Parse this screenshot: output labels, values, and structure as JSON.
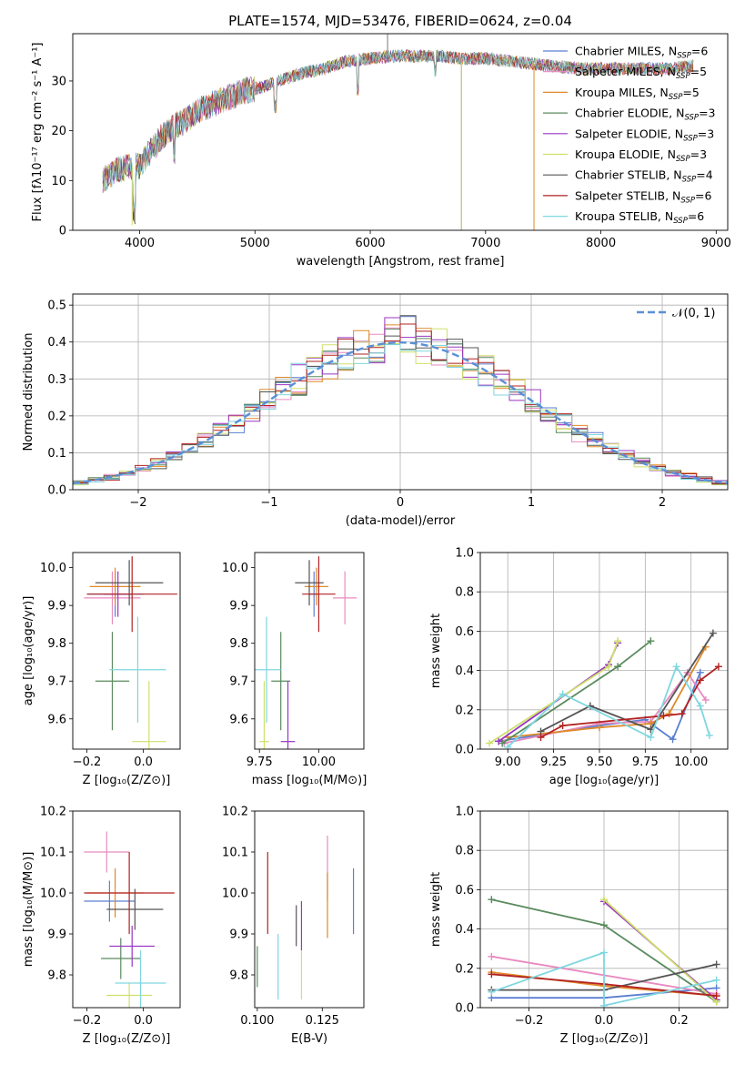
{
  "chart_data": [
    {
      "id": "spectrum",
      "type": "line",
      "title": "PLATE=1574, MJD=53476, FIBERID=0624, z=0.04",
      "xlabel": "wavelength [Angstrom, rest frame]",
      "ylabel": "Flux [fλ10⁻¹⁷ erg cm⁻² s⁻¹ A⁻¹]",
      "xlim": [
        3420,
        9100
      ],
      "ylim": [
        0,
        39.5
      ],
      "x_ticks": [
        4000,
        5000,
        6000,
        7000,
        8000,
        9000
      ],
      "y_ticks": [
        0,
        10,
        20,
        30
      ],
      "legend_position": "right",
      "series": [
        {
          "name": "Chabrier MILES, N_SSP=6",
          "color": "#5b7fd1"
        },
        {
          "name": "Salpeter MILES, N_SSP=5",
          "color": "#e88ac0"
        },
        {
          "name": "Kroupa MILES, N_SSP=5",
          "color": "#e0892a"
        },
        {
          "name": "Chabrier ELODIE, N_SSP=3",
          "color": "#5a8a5e"
        },
        {
          "name": "Salpeter ELODIE, N_SSP=3",
          "color": "#9a36c2"
        },
        {
          "name": "Kroupa ELODIE, N_SSP=3",
          "color": "#cfe06b"
        },
        {
          "name": "Chabrier STELIB, N_SSP=4",
          "color": "#555555"
        },
        {
          "name": "Salpeter STELIB, N_SSP=6",
          "color": "#b22222"
        },
        {
          "name": "Kroupa STELIB, N_SSP=6",
          "color": "#7fd6e0"
        }
      ],
      "envelope": {
        "x": [
          3680,
          3800,
          3950,
          4000,
          4100,
          4200,
          4300,
          4400,
          4500,
          4600,
          4700,
          4800,
          4900,
          5000,
          5100,
          5200,
          5400,
          5600,
          5800,
          6000,
          6200,
          6400,
          6600,
          6800,
          7000,
          7200,
          7400,
          7600,
          7800,
          8000,
          8200,
          8400,
          8600,
          8800
        ],
        "y": [
          10,
          12,
          13,
          13,
          16,
          19,
          21,
          22,
          24,
          25,
          26,
          27,
          28,
          28.5,
          29,
          30,
          31.5,
          32.5,
          34,
          34.5,
          35,
          35,
          35,
          34.5,
          34.5,
          34,
          33.5,
          33,
          32.5,
          32.5,
          32.5,
          32.5,
          32.5,
          33
        ]
      },
      "drops": [
        {
          "x": 3935,
          "y_min": 1,
          "color": "#cfe06b"
        },
        {
          "x": 6790,
          "y_min": 0,
          "color": "#b3b35a"
        },
        {
          "x": 7420,
          "y_min": 0,
          "color": "#e0892a"
        }
      ]
    },
    {
      "id": "residuals",
      "type": "line",
      "xlabel": "(data-model)/error",
      "ylabel": "Normed distribution",
      "xlim": [
        -2.5,
        2.5
      ],
      "ylim": [
        0,
        0.53
      ],
      "x_ticks": [
        -2,
        -1,
        0,
        1,
        2
      ],
      "y_ticks": [
        0.0,
        0.1,
        0.2,
        0.3,
        0.4,
        0.5
      ],
      "grid": true,
      "legend": [
        {
          "name": "𝒩(0, 1)",
          "color": "#5b8fd6"
        }
      ],
      "legend_position": "top-right",
      "gaussian": {
        "mu": 0,
        "sigma": 1
      }
    },
    {
      "id": "age_vs_Z",
      "type": "scatter",
      "xlabel": "Z [log₁₀(Z/Z⊙)]",
      "ylabel": "age  [log₁₀(age/yr)]",
      "xlim": [
        -0.25,
        0.13
      ],
      "ylim": [
        9.52,
        10.04
      ],
      "x_ticks": [
        -0.2,
        0.0
      ],
      "y_ticks": [
        9.6,
        9.7,
        9.8,
        9.9,
        10.0
      ],
      "points": [
        {
          "x": -0.1,
          "y": 9.93,
          "xerr": 0.1,
          "yerr": 0.06,
          "color": "#5b7fd1"
        },
        {
          "x": -0.11,
          "y": 9.92,
          "xerr": 0.1,
          "yerr": 0.07,
          "color": "#e88ac0"
        },
        {
          "x": -0.1,
          "y": 9.95,
          "xerr": 0.09,
          "yerr": 0.05,
          "color": "#e0892a"
        },
        {
          "x": -0.11,
          "y": 9.7,
          "xerr": 0.06,
          "yerr": 0.13,
          "color": "#5a8a5e"
        },
        {
          "x": -0.09,
          "y": 9.93,
          "xerr": 0.05,
          "yerr": 0.06,
          "color": "#9a36c2"
        },
        {
          "x": 0.02,
          "y": 9.54,
          "xerr": 0.06,
          "yerr": 0.16,
          "color": "#cfe06b"
        },
        {
          "x": -0.05,
          "y": 9.96,
          "xerr": 0.12,
          "yerr": 0.06,
          "color": "#555555"
        },
        {
          "x": -0.04,
          "y": 9.93,
          "xerr": 0.16,
          "yerr": 0.1,
          "color": "#b22222"
        },
        {
          "x": -0.02,
          "y": 9.73,
          "xerr": 0.1,
          "yerr": 0.14,
          "color": "#7fd6e0"
        }
      ]
    },
    {
      "id": "age_vs_mass",
      "type": "scatter",
      "xlabel": "mass [log₁₀(M/M⊙)]",
      "xlim": [
        9.73,
        10.19
      ],
      "ylim": [
        9.52,
        10.04
      ],
      "x_ticks": [
        9.75,
        10.0
      ],
      "y_ticks": [
        9.6,
        9.7,
        9.8,
        9.9,
        10.0
      ],
      "points": [
        {
          "x": 9.98,
          "y": 9.93,
          "xerr": 0.02,
          "yerr": 0.06,
          "color": "#5b7fd1"
        },
        {
          "x": 10.11,
          "y": 9.92,
          "xerr": 0.05,
          "yerr": 0.07,
          "color": "#e88ac0"
        },
        {
          "x": 9.99,
          "y": 9.95,
          "xerr": 0.05,
          "yerr": 0.05,
          "color": "#e0892a"
        },
        {
          "x": 9.84,
          "y": 9.7,
          "xerr": 0.04,
          "yerr": 0.13,
          "color": "#5a8a5e"
        },
        {
          "x": 9.87,
          "y": 9.54,
          "xerr": 0.03,
          "yerr": 0.16,
          "color": "#9a36c2"
        },
        {
          "x": 9.77,
          "y": 9.54,
          "xerr": 0.02,
          "yerr": 0.16,
          "color": "#cfe06b"
        },
        {
          "x": 9.96,
          "y": 9.96,
          "xerr": 0.06,
          "yerr": 0.06,
          "color": "#555555"
        },
        {
          "x": 10.0,
          "y": 9.93,
          "xerr": 0.07,
          "yerr": 0.1,
          "color": "#b22222"
        },
        {
          "x": 9.78,
          "y": 9.73,
          "xerr": 0.06,
          "yerr": 0.14,
          "color": "#7fd6e0"
        }
      ]
    },
    {
      "id": "weight_vs_age",
      "type": "line",
      "xlabel": "age  [log₁₀(age/yr)]",
      "ylabel": "mass weight",
      "xlim": [
        8.85,
        10.2
      ],
      "ylim": [
        0,
        1.0
      ],
      "x_ticks": [
        9.0,
        9.25,
        9.5,
        9.75,
        10.0
      ],
      "y_ticks": [
        0.0,
        0.2,
        0.4,
        0.6,
        0.8,
        1.0
      ],
      "grid": true,
      "series": [
        {
          "color": "#5b7fd1",
          "x": [
            8.95,
            9.5,
            9.75,
            9.9,
            10.05
          ],
          "y": [
            0.04,
            0.12,
            0.15,
            0.05,
            0.39
          ]
        },
        {
          "color": "#e88ac0",
          "x": [
            8.98,
            9.5,
            9.78,
            9.98,
            10.08
          ],
          "y": [
            0.03,
            0.13,
            0.14,
            0.39,
            0.25
          ]
        },
        {
          "color": "#e0892a",
          "x": [
            9.0,
            9.5,
            9.78,
            9.88,
            10.08
          ],
          "y": [
            0.06,
            0.11,
            0.13,
            0.18,
            0.52
          ]
        },
        {
          "color": "#5a8a5e",
          "x": [
            8.97,
            9.6,
            9.78
          ],
          "y": [
            0.03,
            0.42,
            0.55
          ]
        },
        {
          "color": "#9a36c2",
          "x": [
            8.95,
            9.55,
            9.6
          ],
          "y": [
            0.04,
            0.43,
            0.54
          ]
        },
        {
          "color": "#cfe06b",
          "x": [
            8.9,
            9.55,
            9.6
          ],
          "y": [
            0.03,
            0.42,
            0.55
          ]
        },
        {
          "color": "#555555",
          "x": [
            9.18,
            9.45,
            9.78,
            10.12
          ],
          "y": [
            0.09,
            0.22,
            0.1,
            0.59
          ]
        },
        {
          "color": "#b22222",
          "x": [
            9.18,
            9.3,
            9.85,
            9.95,
            10.05,
            10.15
          ],
          "y": [
            0.06,
            0.12,
            0.17,
            0.18,
            0.35,
            0.42
          ]
        },
        {
          "color": "#7fd6e0",
          "x": [
            9.0,
            9.3,
            9.78,
            9.92,
            10.05,
            10.1
          ],
          "y": [
            0.01,
            0.28,
            0.06,
            0.42,
            0.22,
            0.07
          ]
        }
      ]
    },
    {
      "id": "mass_vs_Z",
      "type": "scatter",
      "xlabel": "Z [log₁₀(Z/Z⊙)]",
      "ylabel": "mass [log₁₀(M/M⊙)]",
      "xlim": [
        -0.25,
        0.13
      ],
      "ylim": [
        9.72,
        10.2
      ],
      "x_ticks": [
        -0.2,
        0.0
      ],
      "y_ticks": [
        9.8,
        9.9,
        10.0,
        10.1,
        10.2
      ],
      "points": [
        {
          "x": -0.12,
          "y": 9.98,
          "xerr": 0.09,
          "yerr": 0.05,
          "color": "#5b7fd1"
        },
        {
          "x": -0.13,
          "y": 10.1,
          "xerr": 0.08,
          "yerr": 0.05,
          "color": "#e88ac0"
        },
        {
          "x": -0.1,
          "y": 10.0,
          "xerr": 0.1,
          "yerr": 0.06,
          "color": "#e0892a"
        },
        {
          "x": -0.08,
          "y": 9.84,
          "xerr": 0.07,
          "yerr": 0.05,
          "color": "#5a8a5e"
        },
        {
          "x": -0.04,
          "y": 9.87,
          "xerr": 0.08,
          "yerr": 0.05,
          "color": "#9a36c2"
        },
        {
          "x": -0.05,
          "y": 9.75,
          "xerr": 0.08,
          "yerr": 0.03,
          "color": "#cfe06b"
        },
        {
          "x": -0.03,
          "y": 9.96,
          "xerr": 0.1,
          "yerr": 0.05,
          "color": "#555555"
        },
        {
          "x": -0.05,
          "y": 10.0,
          "xerr": 0.16,
          "yerr": 0.1,
          "color": "#b22222"
        },
        {
          "x": -0.01,
          "y": 9.78,
          "xerr": 0.09,
          "yerr": 0.08,
          "color": "#7fd6e0"
        }
      ]
    },
    {
      "id": "mass_vs_ebv",
      "type": "scatter",
      "xlabel": "E(B-V)",
      "xlim": [
        0.099,
        0.141
      ],
      "ylim": [
        9.72,
        10.2
      ],
      "x_ticks": [
        0.1,
        0.125
      ],
      "y_ticks": [
        9.8,
        9.9,
        10.0,
        10.1,
        10.2
      ],
      "points": [
        {
          "x": 0.137,
          "y": 9.98,
          "yerr": 0.08,
          "color": "#5b7fd1"
        },
        {
          "x": 0.127,
          "y": 10.06,
          "yerr": 0.08,
          "color": "#e88ac0"
        },
        {
          "x": 0.127,
          "y": 9.97,
          "yerr": 0.08,
          "color": "#e0892a"
        },
        {
          "x": 0.1,
          "y": 9.82,
          "yerr": 0.05,
          "color": "#5a8a5e"
        },
        {
          "x": 0.117,
          "y": 9.92,
          "yerr": 0.06,
          "color": "#9a36c2"
        },
        {
          "x": 0.117,
          "y": 9.8,
          "yerr": 0.06,
          "color": "#cfe06b"
        },
        {
          "x": 0.115,
          "y": 9.92,
          "yerr": 0.05,
          "color": "#555555"
        },
        {
          "x": 0.104,
          "y": 10.0,
          "yerr": 0.1,
          "color": "#b22222"
        },
        {
          "x": 0.108,
          "y": 9.82,
          "yerr": 0.08,
          "color": "#7fd6e0"
        }
      ]
    },
    {
      "id": "weight_vs_Z",
      "type": "line",
      "xlabel": "Z [log₁₀(Z/Z⊙)]",
      "ylabel": "mass weight",
      "xlim": [
        -0.33,
        0.33
      ],
      "ylim": [
        0,
        1.0
      ],
      "x_ticks": [
        -0.2,
        0.0,
        0.2
      ],
      "y_ticks": [
        0.0,
        0.2,
        0.4,
        0.6,
        0.8,
        1.0
      ],
      "grid": true,
      "series": [
        {
          "color": "#5b7fd1",
          "x": [
            -0.3,
            0.0,
            0.3
          ],
          "y": [
            0.05,
            0.05,
            0.1
          ]
        },
        {
          "color": "#e88ac0",
          "x": [
            -0.3,
            0.3
          ],
          "y": [
            0.26,
            0.07
          ]
        },
        {
          "color": "#e0892a",
          "x": [
            -0.3,
            0.0,
            0.3
          ],
          "y": [
            0.18,
            0.11,
            0.06
          ]
        },
        {
          "color": "#5a8a5e",
          "x": [
            -0.3,
            0.0,
            0.3
          ],
          "y": [
            0.55,
            0.42,
            0.03
          ]
        },
        {
          "color": "#9a36c2",
          "x": [
            0.0,
            0.3
          ],
          "y": [
            0.54,
            0.04
          ]
        },
        {
          "color": "#cfe06b",
          "x": [
            0.0,
            0.3
          ],
          "y": [
            0.55,
            0.03
          ]
        },
        {
          "color": "#555555",
          "x": [
            -0.3,
            0.0,
            0.3
          ],
          "y": [
            0.09,
            0.09,
            0.22
          ]
        },
        {
          "color": "#b22222",
          "x": [
            -0.3,
            0.0,
            0.3
          ],
          "y": [
            0.17,
            0.12,
            0.06
          ]
        },
        {
          "color": "#7fd6e0",
          "x": [
            -0.3,
            0.0,
            0.0,
            0.3
          ],
          "y": [
            0.08,
            0.28,
            0.01,
            0.14
          ]
        }
      ]
    }
  ]
}
